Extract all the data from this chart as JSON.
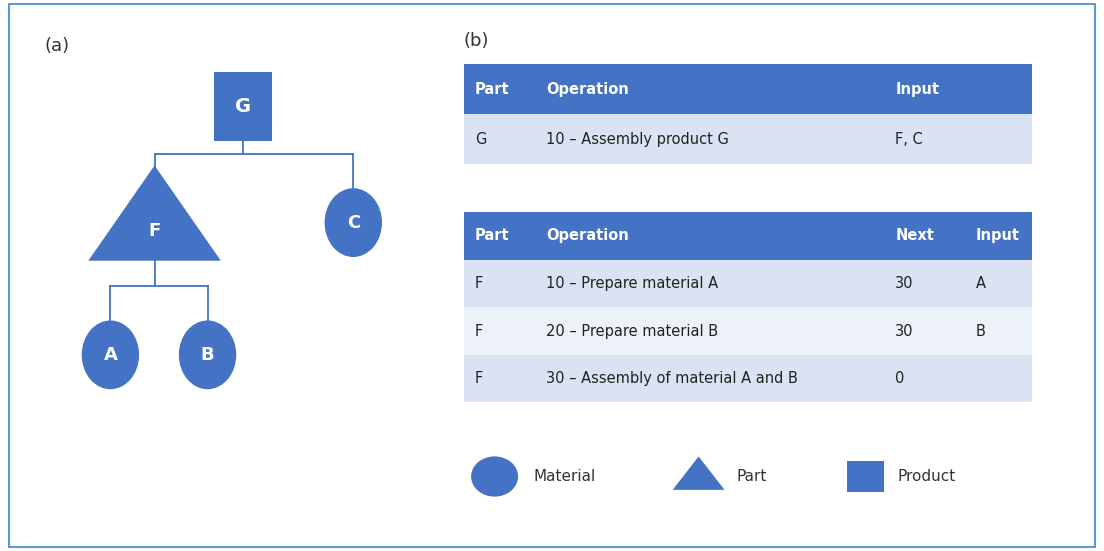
{
  "title_a": "(a)",
  "title_b": "(b)",
  "bg_color": "#ffffff",
  "border_color": "#5b9bd5",
  "node_color": "#4472c4",
  "node_text_color": "#ffffff",
  "line_color": "#4472c4",
  "table1_header_color": "#4472c4",
  "table1_row_color": "#dae3f3",
  "table2_header_color": "#4472c4",
  "table2_row_colors": [
    "#dae3f3",
    "#edf2f9",
    "#dae3f3"
  ],
  "table1_headers": [
    "Part",
    "Operation",
    "Input"
  ],
  "table1_rows": [
    [
      "G",
      "10 – Assembly product G",
      "F, C"
    ]
  ],
  "table2_headers": [
    "Part",
    "Operation",
    "Next",
    "Input"
  ],
  "table2_rows": [
    [
      "F",
      "10 – Prepare material A",
      "30",
      "A"
    ],
    [
      "F",
      "20 – Prepare material B",
      "30",
      "B"
    ],
    [
      "F",
      "30 – Assembly of material A and B",
      "0",
      ""
    ]
  ]
}
